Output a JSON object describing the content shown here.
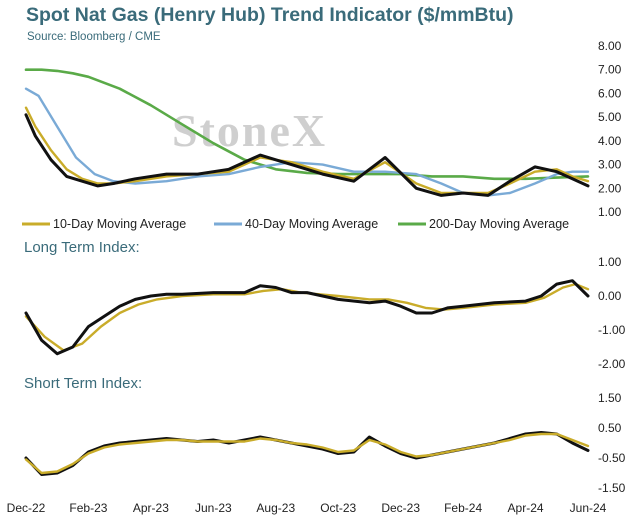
{
  "title": "Spot Nat Gas (Henry Hub) Trend Indicator ($/mmBtu)",
  "source": "Source: Bloomberg / CME",
  "watermark": "StoneX",
  "x_ticks": [
    "Dec-22",
    "Feb-23",
    "Apr-23",
    "Jun-23",
    "Aug-23",
    "Oct-23",
    "Dec-23",
    "Feb-24",
    "Apr-24",
    "Jun-24"
  ],
  "colors": {
    "price": "#111111",
    "ma10": "#c9ac2a",
    "ma40": "#7aaad6",
    "ma200": "#5aaa48"
  },
  "chart_data": [
    {
      "type": "line",
      "ylim": [
        1,
        8
      ],
      "y_ticks": [
        "1.00",
        "2.00",
        "3.00",
        "4.00",
        "5.00",
        "6.00",
        "7.00",
        "8.00"
      ],
      "legend": [
        "10-Day Moving Average",
        "40-Day Moving Average",
        "200-Day Moving Average"
      ],
      "series": [
        {
          "key": "price",
          "x": [
            0,
            0.3,
            0.8,
            1.3,
            1.8,
            2.3,
            2.8,
            3.5,
            4.5,
            5.5,
            6.5,
            7.5,
            8.5,
            9.5,
            10.5,
            11.5,
            12.5,
            13.3,
            14.0,
            14.8,
            15.5,
            16.3,
            17.0,
            17.5,
            18.0
          ],
          "values": [
            5.1,
            4.2,
            3.2,
            2.5,
            2.3,
            2.1,
            2.2,
            2.4,
            2.6,
            2.6,
            2.8,
            3.4,
            3.0,
            2.6,
            2.3,
            3.3,
            2.0,
            1.7,
            1.8,
            1.7,
            2.3,
            2.9,
            2.7,
            2.4,
            2.1
          ]
        },
        {
          "key": "ma10",
          "name": "10-Day Moving Average",
          "x": [
            0,
            0.3,
            0.8,
            1.3,
            1.8,
            2.3,
            2.8,
            3.5,
            4.5,
            5.5,
            6.5,
            7.5,
            8.5,
            9.5,
            10.5,
            11.5,
            12.5,
            13.3,
            14.0,
            14.8,
            15.5,
            16.3,
            17.0,
            17.5,
            18.0
          ],
          "values": [
            5.4,
            4.6,
            3.6,
            2.8,
            2.4,
            2.2,
            2.2,
            2.3,
            2.5,
            2.6,
            2.7,
            3.3,
            3.1,
            2.7,
            2.4,
            3.1,
            2.2,
            1.8,
            1.8,
            1.8,
            2.2,
            2.7,
            2.8,
            2.5,
            2.3
          ]
        },
        {
          "key": "ma40",
          "name": "40-Day Moving Average",
          "x": [
            0,
            0.4,
            1.0,
            1.6,
            2.2,
            2.8,
            3.5,
            4.5,
            5.5,
            6.5,
            7.5,
            8.5,
            9.5,
            10.5,
            11.5,
            12.5,
            13.3,
            14.0,
            14.8,
            15.5,
            16.3,
            17.0,
            17.5,
            18.0
          ],
          "values": [
            6.2,
            5.9,
            4.6,
            3.3,
            2.6,
            2.3,
            2.2,
            2.3,
            2.5,
            2.6,
            2.9,
            3.1,
            3.0,
            2.7,
            2.7,
            2.6,
            2.2,
            1.8,
            1.7,
            1.8,
            2.2,
            2.6,
            2.7,
            2.7
          ]
        },
        {
          "key": "ma200",
          "name": "200-Day Moving Average",
          "x": [
            0,
            0.5,
            1.0,
            1.5,
            2.0,
            3.0,
            4.0,
            5.0,
            6.0,
            7.0,
            8.0,
            9.0,
            10.0,
            11.0,
            12.0,
            13.0,
            14.0,
            15.0,
            16.0,
            17.0,
            18.0
          ],
          "values": [
            7.0,
            7.0,
            6.95,
            6.85,
            6.7,
            6.2,
            5.5,
            4.7,
            3.9,
            3.2,
            2.8,
            2.65,
            2.6,
            2.6,
            2.6,
            2.5,
            2.5,
            2.4,
            2.4,
            2.45,
            2.5
          ]
        }
      ]
    },
    {
      "type": "line",
      "title": "Long Term Index:",
      "ylim": [
        -2,
        1
      ],
      "y_ticks": [
        "-2.00",
        "-1.00",
        "0.00",
        "1.00"
      ],
      "series": [
        {
          "key": "price",
          "x": [
            0,
            0.5,
            1.0,
            1.5,
            2.0,
            2.5,
            3.0,
            3.5,
            4.0,
            4.5,
            5.0,
            6.0,
            7.0,
            7.5,
            8.0,
            8.5,
            9.0,
            9.5,
            10.0,
            11.0,
            11.5,
            12.0,
            12.5,
            13.0,
            13.5,
            14.0,
            15.0,
            16.0,
            16.5,
            17.0,
            17.5,
            18.0
          ],
          "values": [
            -0.5,
            -1.3,
            -1.7,
            -1.5,
            -0.9,
            -0.6,
            -0.3,
            -0.1,
            0.0,
            0.05,
            0.05,
            0.1,
            0.1,
            0.3,
            0.25,
            0.1,
            0.1,
            0.0,
            -0.1,
            -0.2,
            -0.15,
            -0.3,
            -0.5,
            -0.5,
            -0.35,
            -0.3,
            -0.2,
            -0.15,
            0.0,
            0.35,
            0.45,
            0.0
          ]
        },
        {
          "key": "ma10",
          "x": [
            0,
            0.6,
            1.2,
            1.8,
            2.4,
            3.0,
            3.6,
            4.2,
            5.0,
            6.0,
            7.0,
            7.6,
            8.2,
            8.8,
            9.4,
            10.0,
            11.0,
            11.6,
            12.2,
            12.8,
            13.4,
            14.0,
            15.0,
            16.0,
            16.6,
            17.2,
            17.6,
            18.0
          ],
          "values": [
            -0.6,
            -1.2,
            -1.6,
            -1.4,
            -0.9,
            -0.5,
            -0.25,
            -0.1,
            0.0,
            0.05,
            0.05,
            0.15,
            0.2,
            0.1,
            0.05,
            0.0,
            -0.1,
            -0.1,
            -0.2,
            -0.35,
            -0.4,
            -0.35,
            -0.25,
            -0.2,
            -0.05,
            0.25,
            0.35,
            0.2
          ]
        }
      ]
    },
    {
      "type": "line",
      "title": "Short Term Index:",
      "ylim": [
        -1.5,
        1.5
      ],
      "y_ticks": [
        "-1.50",
        "-0.50",
        "0.50",
        "1.50"
      ],
      "series": [
        {
          "key": "price",
          "x": [
            0,
            0.5,
            1.0,
            1.5,
            2.0,
            2.5,
            3.0,
            3.5,
            4.0,
            4.5,
            5.0,
            5.5,
            6.0,
            6.5,
            7.0,
            7.5,
            8.0,
            8.5,
            9.0,
            9.5,
            10.0,
            10.5,
            11.0,
            11.5,
            12.0,
            12.5,
            13.0,
            13.5,
            14.0,
            14.5,
            15.0,
            15.5,
            16.0,
            16.5,
            17.0,
            17.5,
            18.0
          ],
          "values": [
            -0.5,
            -1.05,
            -1.0,
            -0.75,
            -0.3,
            -0.1,
            0.0,
            0.05,
            0.1,
            0.15,
            0.1,
            0.05,
            0.1,
            0.0,
            0.1,
            0.2,
            0.1,
            0.0,
            -0.1,
            -0.2,
            -0.35,
            -0.3,
            0.2,
            -0.1,
            -0.35,
            -0.5,
            -0.4,
            -0.3,
            -0.2,
            -0.1,
            0.0,
            0.15,
            0.3,
            0.35,
            0.3,
            0.0,
            -0.25
          ]
        },
        {
          "key": "ma10",
          "x": [
            0,
            0.5,
            1.0,
            1.5,
            2.0,
            2.5,
            3.0,
            3.5,
            4.0,
            4.5,
            5.0,
            5.5,
            6.0,
            6.5,
            7.0,
            7.5,
            8.0,
            8.5,
            9.0,
            9.5,
            10.0,
            10.5,
            11.0,
            11.5,
            12.0,
            12.5,
            13.0,
            13.5,
            14.0,
            14.5,
            15.0,
            15.5,
            16.0,
            16.5,
            17.0,
            17.5,
            18.0
          ],
          "values": [
            -0.55,
            -1.0,
            -0.95,
            -0.7,
            -0.35,
            -0.15,
            -0.05,
            0.0,
            0.05,
            0.1,
            0.1,
            0.05,
            0.05,
            0.05,
            0.05,
            0.15,
            0.1,
            0.0,
            -0.05,
            -0.15,
            -0.3,
            -0.25,
            0.1,
            -0.05,
            -0.3,
            -0.45,
            -0.4,
            -0.3,
            -0.2,
            -0.1,
            0.0,
            0.1,
            0.25,
            0.3,
            0.3,
            0.1,
            -0.1
          ]
        }
      ]
    }
  ]
}
